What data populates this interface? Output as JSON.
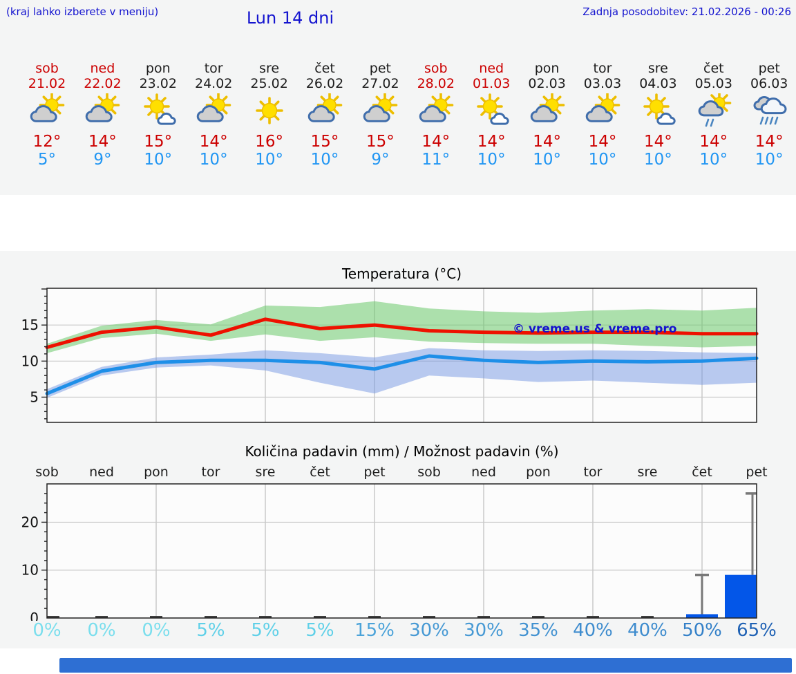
{
  "header": {
    "hint": "(kraj lahko izberete v meniju)",
    "title": "Lun 14 dni",
    "last_update": "Zadnja posodobitev: 21.02.2026 - 00:26"
  },
  "watermark": "© vreme.us & vreme.pro",
  "colors": {
    "header_blue": "#1414cf",
    "weekend_red": "#cc0000",
    "high_temp_red": "#cc0000",
    "low_temp_blue": "#2196f3",
    "temp_line_max": "#ee1100",
    "temp_line_min": "#1e8fe8",
    "temp_band_max": "rgba(105,200,105,0.55)",
    "temp_band_min": "rgba(115,150,225,0.5)",
    "precip_bar_blue": "#0356e8",
    "whisker_gray": "#787878",
    "footer_bar_blue": "#2e6fd3",
    "sun": "#ffdf00",
    "ray": "#edbe00",
    "cloud_fill": "#cfcfcf",
    "cloud_stroke": "#3f6dab",
    "rain": "#4a85c0"
  },
  "days": [
    {
      "name": "sob",
      "date": "21.02",
      "weekend": true,
      "icon": "sun-cloud",
      "high": "12°",
      "low": "5°"
    },
    {
      "name": "ned",
      "date": "22.02",
      "weekend": true,
      "icon": "sun-cloud",
      "high": "14°",
      "low": "9°"
    },
    {
      "name": "pon",
      "date": "23.02",
      "weekend": false,
      "icon": "sun-small-cloud",
      "high": "15°",
      "low": "10°"
    },
    {
      "name": "tor",
      "date": "24.02",
      "weekend": false,
      "icon": "sun-cloud",
      "high": "14°",
      "low": "10°"
    },
    {
      "name": "sre",
      "date": "25.02",
      "weekend": false,
      "icon": "sun",
      "high": "16°",
      "low": "10°"
    },
    {
      "name": "čet",
      "date": "26.02",
      "weekend": false,
      "icon": "sun-cloud",
      "high": "15°",
      "low": "10°"
    },
    {
      "name": "pet",
      "date": "27.02",
      "weekend": false,
      "icon": "sun-cloud",
      "high": "15°",
      "low": "9°"
    },
    {
      "name": "sob",
      "date": "28.02",
      "weekend": true,
      "icon": "sun-cloud",
      "high": "14°",
      "low": "11°"
    },
    {
      "name": "ned",
      "date": "01.03",
      "weekend": true,
      "icon": "sun-small-cloud",
      "high": "14°",
      "low": "10°"
    },
    {
      "name": "pon",
      "date": "02.03",
      "weekend": false,
      "icon": "sun-cloud",
      "high": "14°",
      "low": "10°"
    },
    {
      "name": "tor",
      "date": "03.03",
      "weekend": false,
      "icon": "sun-cloud",
      "high": "14°",
      "low": "10°"
    },
    {
      "name": "sre",
      "date": "04.03",
      "weekend": false,
      "icon": "sun-small-cloud",
      "high": "14°",
      "low": "10°"
    },
    {
      "name": "čet",
      "date": "05.03",
      "weekend": false,
      "icon": "sun-cloud-rain",
      "high": "14°",
      "low": "10°"
    },
    {
      "name": "pet",
      "date": "06.03",
      "weekend": false,
      "icon": "clouds-rain",
      "high": "14°",
      "low": "10°"
    }
  ],
  "chart_data": [
    {
      "type": "line",
      "title": "Temperatura (°C)",
      "x_days": [
        "sob 21.02",
        "ned 22.02",
        "pon 23.02",
        "tor 24.02",
        "sre 25.02",
        "čet 26.02",
        "pet 27.02",
        "sob 28.02",
        "ned 01.03",
        "pon 02.03",
        "tor 03.03",
        "sre 04.03",
        "čet 05.03",
        "pet 06.03"
      ],
      "ylim": [
        1.5,
        20.1
      ],
      "yticks": [
        5,
        10,
        15
      ],
      "grid": true,
      "series": [
        {
          "name": "max-temperature",
          "kind": "line",
          "color": "#ee1100",
          "values": [
            11.9,
            14.0,
            14.7,
            13.6,
            15.8,
            14.5,
            15.0,
            14.2,
            14.0,
            13.9,
            14.0,
            14.0,
            13.8,
            13.8
          ]
        },
        {
          "name": "min-temperature",
          "kind": "line",
          "color": "#1e8fe8",
          "values": [
            5.5,
            8.6,
            9.8,
            10.1,
            10.1,
            9.8,
            8.9,
            10.7,
            10.1,
            9.8,
            10.0,
            9.9,
            10.0,
            10.4
          ]
        },
        {
          "name": "max-temperature-range",
          "kind": "band",
          "color": "rgba(105,200,105,0.55)",
          "upper": [
            12.4,
            14.9,
            15.7,
            15.1,
            17.7,
            17.5,
            18.3,
            17.3,
            16.9,
            16.7,
            17.0,
            17.2,
            17.0,
            17.4
          ],
          "lower": [
            11.1,
            13.2,
            13.8,
            12.8,
            13.7,
            12.8,
            13.3,
            12.7,
            12.5,
            12.4,
            12.4,
            12.1,
            11.9,
            12.1
          ]
        },
        {
          "name": "min-temperature-range",
          "kind": "band",
          "color": "rgba(115,150,225,0.5)",
          "upper": [
            6.1,
            9.2,
            10.5,
            10.9,
            11.5,
            11.1,
            10.5,
            11.8,
            11.5,
            11.4,
            11.5,
            11.4,
            11.2,
            11.1
          ],
          "lower": [
            4.9,
            8.0,
            9.1,
            9.4,
            8.7,
            7.0,
            5.5,
            8.0,
            7.6,
            7.1,
            7.3,
            7.0,
            6.7,
            7.0
          ]
        }
      ]
    },
    {
      "type": "bar",
      "title": "Količina padavin (mm) / Možnost padavin (%)",
      "categories": [
        "sob",
        "ned",
        "pon",
        "tor",
        "sre",
        "čet",
        "pet",
        "sob",
        "ned",
        "pon",
        "tor",
        "sre",
        "čet",
        "pet"
      ],
      "values": [
        0,
        0,
        0,
        0,
        0,
        0,
        0,
        0,
        0,
        0,
        0,
        0,
        0.8,
        9
      ],
      "whisker_max": [
        null,
        null,
        null,
        null,
        null,
        null,
        null,
        null,
        null,
        null,
        null,
        null,
        9,
        26
      ],
      "bar_color": "#0356e8",
      "ylim": [
        0,
        28
      ],
      "yticks": [
        0,
        10,
        20
      ],
      "grid": true,
      "probability": [
        {
          "label": "0%",
          "color": "#7adeed"
        },
        {
          "label": "0%",
          "color": "#7adeed"
        },
        {
          "label": "0%",
          "color": "#7adeed"
        },
        {
          "label": "5%",
          "color": "#5fd0e8"
        },
        {
          "label": "5%",
          "color": "#5fd0e8"
        },
        {
          "label": "5%",
          "color": "#5fd0e8"
        },
        {
          "label": "15%",
          "color": "#4ba3d9"
        },
        {
          "label": "30%",
          "color": "#4699d4"
        },
        {
          "label": "30%",
          "color": "#4699d4"
        },
        {
          "label": "35%",
          "color": "#4292d1"
        },
        {
          "label": "40%",
          "color": "#3e8cce"
        },
        {
          "label": "40%",
          "color": "#3e8cce"
        },
        {
          "label": "50%",
          "color": "#3380c8"
        },
        {
          "label": "65%",
          "color": "#1e61b4"
        }
      ]
    }
  ]
}
